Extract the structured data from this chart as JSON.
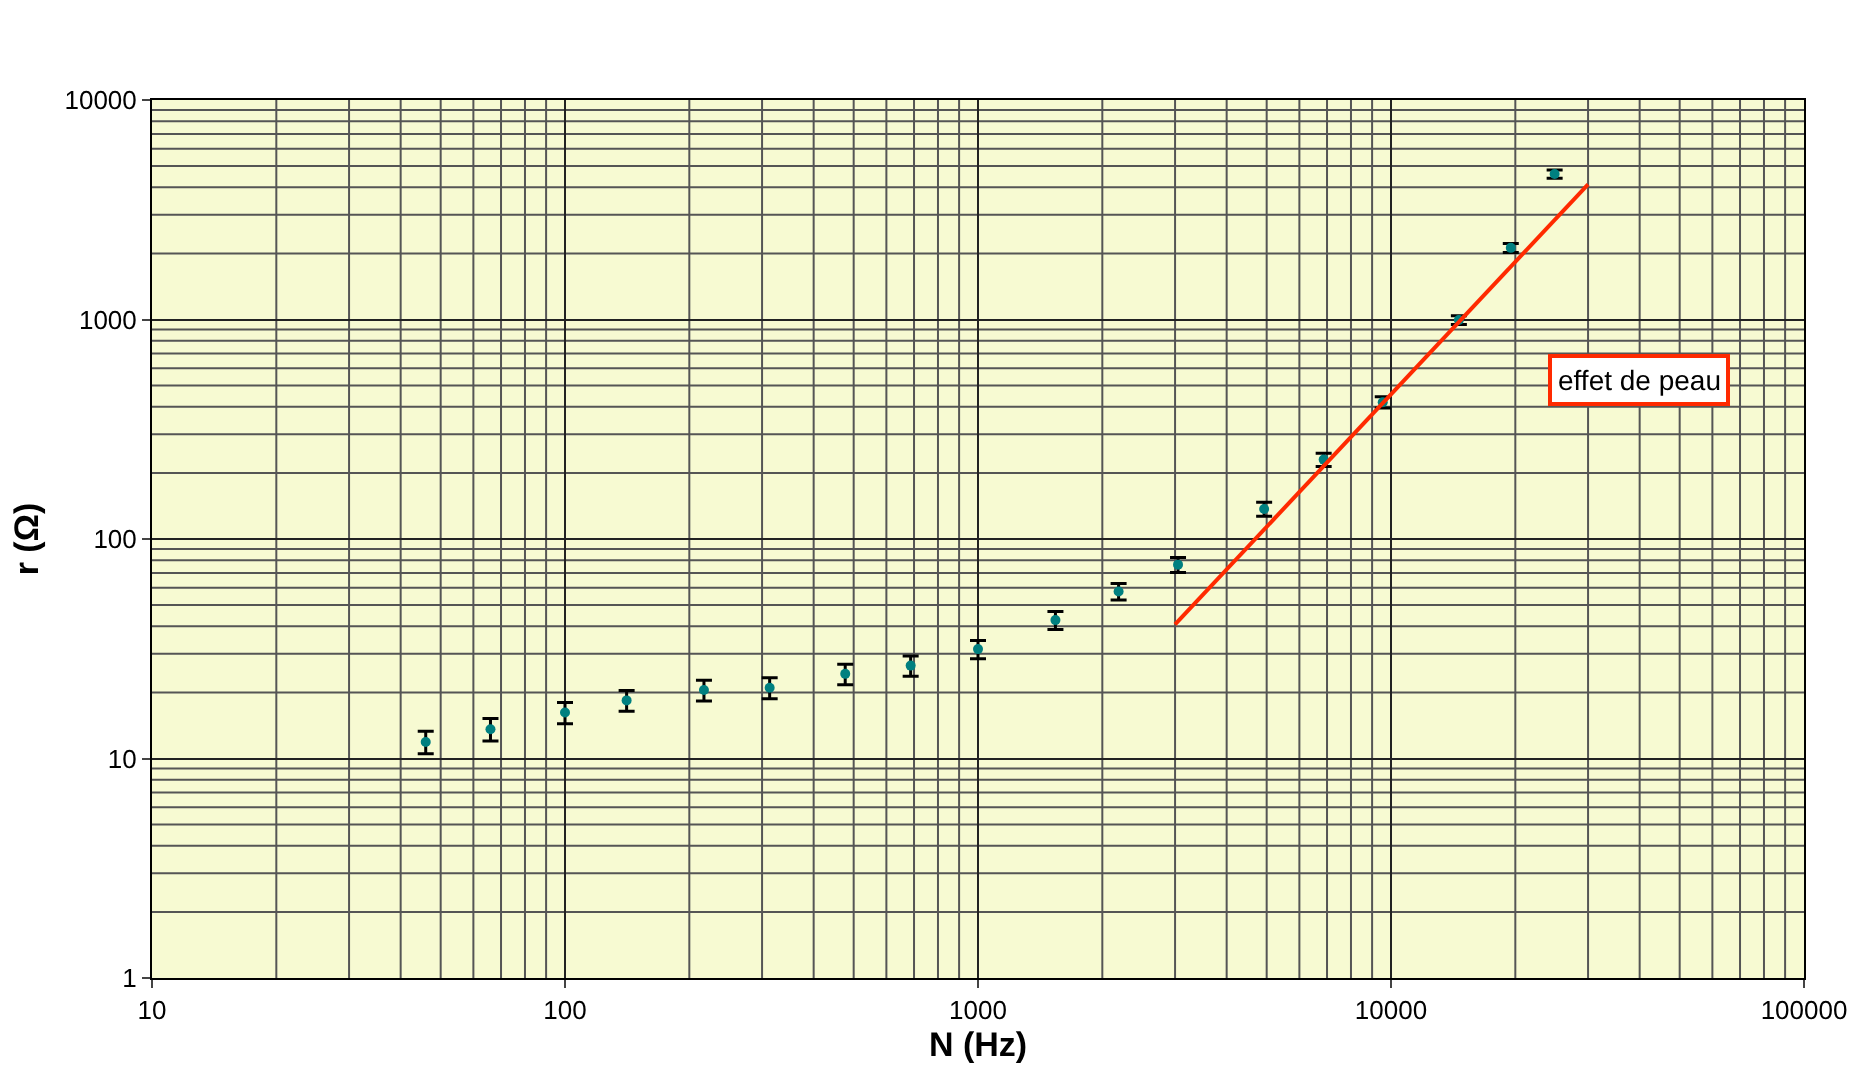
{
  "chart_data": {
    "type": "scatter",
    "xlabel": "N (Hz)",
    "ylabel": "r (Ω)",
    "log": "xy",
    "grid": true,
    "marker": "circle",
    "xlim": [
      10,
      100000
    ],
    "xticks": [
      10,
      100,
      1000,
      10000,
      100000
    ],
    "ylim": [
      1,
      10000
    ],
    "yticks": [
      1,
      10,
      100,
      1000,
      10000
    ],
    "series": [
      {
        "color": "#008080",
        "x": [
          46,
          66,
          100,
          141,
          217,
          313,
          477,
          687,
          1000,
          1540,
          2190,
          3050,
          4930,
          6870,
          9550,
          14600,
          19500,
          24900
        ],
        "values": [
          11.9,
          13.6,
          16.2,
          18.4,
          20.5,
          21,
          24.3,
          26.5,
          31.5,
          42.7,
          57.7,
          76.4,
          137,
          230,
          420,
          995,
          2120,
          4600
        ],
        "errors": [
          1.4,
          1.6,
          1.8,
          2,
          2.2,
          2.3,
          2.6,
          2.8,
          3,
          4,
          5,
          6,
          10,
          16,
          25,
          45,
          100,
          200
        ]
      },
      {
        "type": "line",
        "color": "#ff2a00",
        "marker": "none",
        "line_style": "solid",
        "x": [
          3000,
          30000
        ],
        "values": [
          40.8,
          4130
        ]
      }
    ],
    "annotations": [
      "effet de peau"
    ]
  }
}
